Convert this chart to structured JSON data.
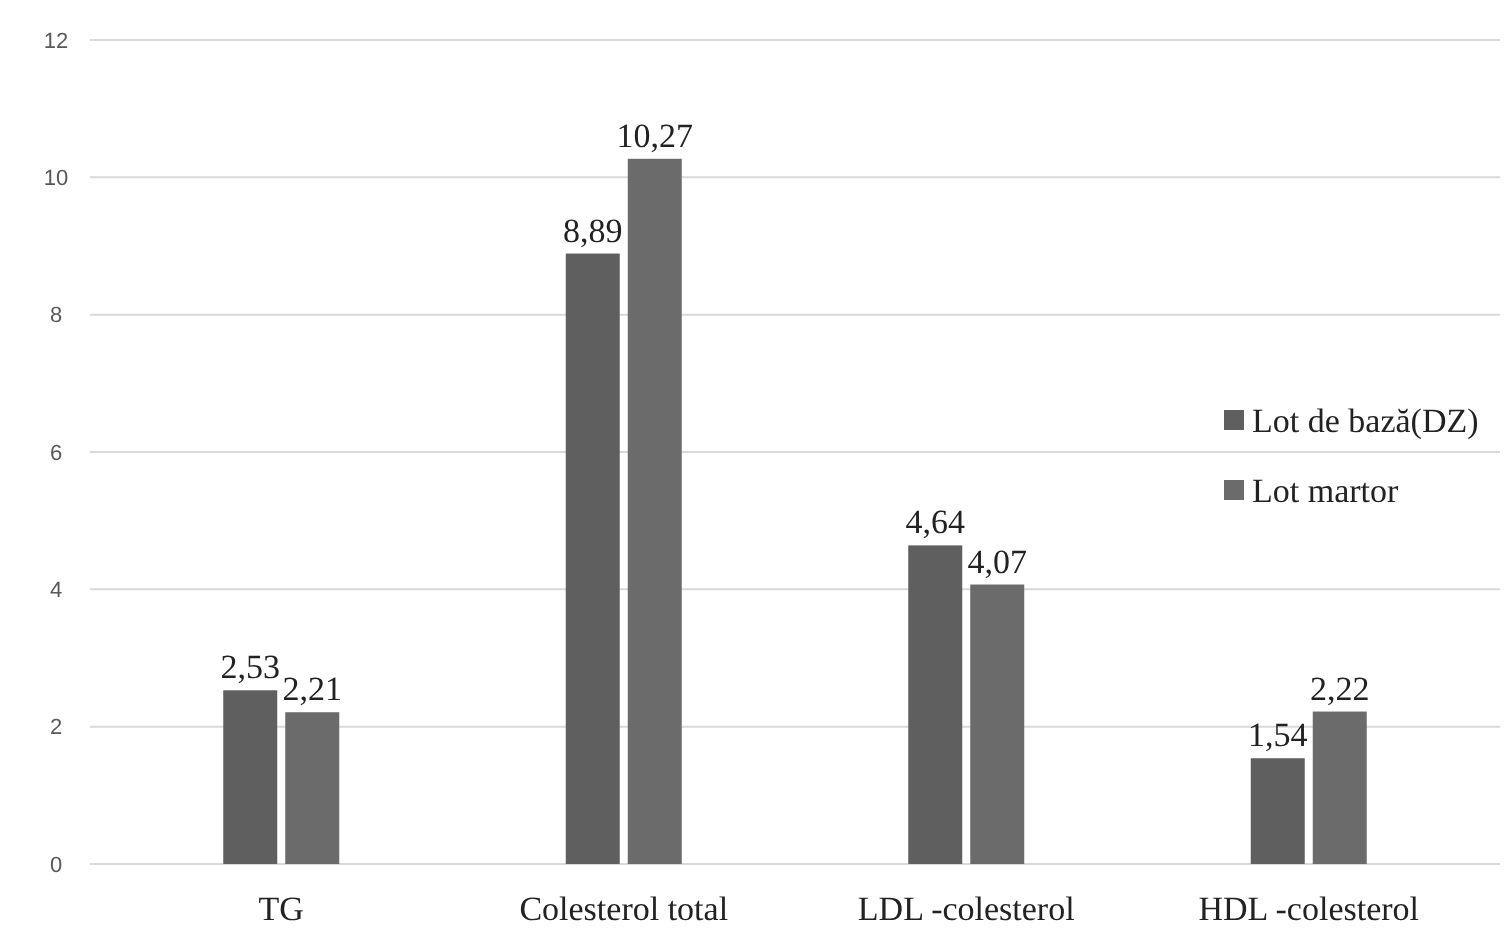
{
  "chart_data": {
    "type": "bar",
    "categories": [
      "TG",
      "Colesterol total",
      "LDL -colesterol",
      "HDL -colesterol"
    ],
    "series": [
      {
        "name": "Lot de bază(DZ)",
        "color": "#5f5f5f",
        "values": [
          2.53,
          8.89,
          4.64,
          1.54
        ],
        "value_labels": [
          "2,53",
          "8,89",
          "4,64",
          "1,54"
        ]
      },
      {
        "name": "Lot martor",
        "color": "#6b6b6b",
        "values": [
          2.21,
          10.27,
          4.07,
          2.22
        ],
        "value_labels": [
          "2,21",
          "10,27",
          "4,07",
          "2,22"
        ]
      }
    ],
    "ylim": [
      0,
      12
    ],
    "yticks": [
      0,
      2,
      4,
      6,
      8,
      10,
      12
    ],
    "grid": "y",
    "legend": "right"
  }
}
